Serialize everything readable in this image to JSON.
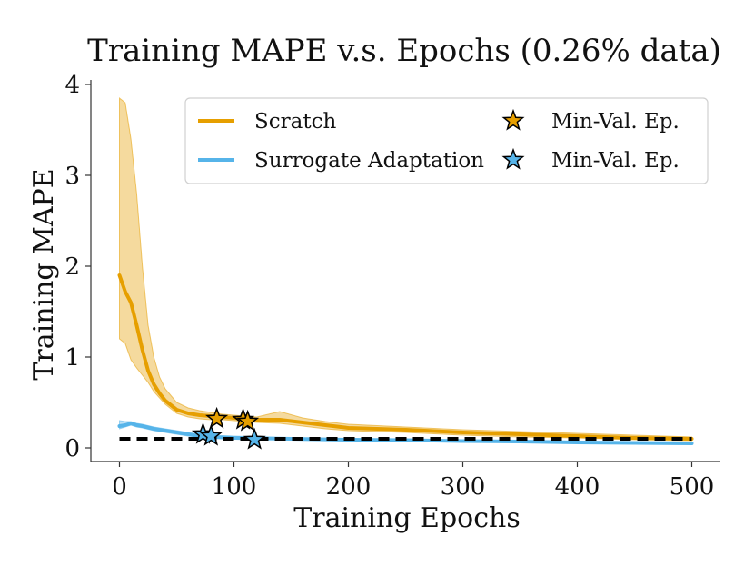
{
  "chart_data": {
    "type": "line",
    "title": "Training MAPE v.s. Epochs (0.26% data)",
    "xlabel": "Training Epochs",
    "ylabel": "Training MAPE",
    "xlim": [
      -25,
      525
    ],
    "ylim": [
      -0.15,
      4.05
    ],
    "xticks": [
      0,
      100,
      200,
      300,
      400,
      500
    ],
    "yticks": [
      0,
      1,
      2,
      3,
      4
    ],
    "xtick_labels": [
      "0",
      "100",
      "200",
      "300",
      "400",
      "500"
    ],
    "ytick_labels": [
      "0",
      "1",
      "2",
      "3",
      "4"
    ],
    "legend_position": "top-right",
    "reference_line": {
      "y": 0.1,
      "style": "dashed",
      "color": "#000000"
    },
    "series": [
      {
        "name": "Scratch",
        "color": "#E69F00",
        "x": [
          0,
          5,
          10,
          15,
          20,
          25,
          30,
          35,
          40,
          50,
          60,
          70,
          80,
          90,
          100,
          120,
          140,
          160,
          180,
          200,
          250,
          300,
          350,
          400,
          450,
          500
        ],
        "values": [
          1.9,
          1.72,
          1.6,
          1.35,
          1.08,
          0.85,
          0.7,
          0.6,
          0.52,
          0.42,
          0.38,
          0.36,
          0.35,
          0.34,
          0.33,
          0.31,
          0.31,
          0.28,
          0.25,
          0.22,
          0.2,
          0.17,
          0.15,
          0.13,
          0.11,
          0.1
        ],
        "upper": [
          3.85,
          3.8,
          3.4,
          2.8,
          2.0,
          1.35,
          1.0,
          0.78,
          0.65,
          0.5,
          0.44,
          0.41,
          0.39,
          0.37,
          0.36,
          0.34,
          0.4,
          0.33,
          0.29,
          0.26,
          0.23,
          0.2,
          0.18,
          0.16,
          0.14,
          0.12
        ],
        "lower": [
          1.2,
          1.15,
          0.97,
          0.88,
          0.8,
          0.72,
          0.62,
          0.55,
          0.48,
          0.38,
          0.34,
          0.32,
          0.31,
          0.31,
          0.3,
          0.28,
          0.27,
          0.24,
          0.21,
          0.19,
          0.17,
          0.14,
          0.12,
          0.11,
          0.09,
          0.08
        ],
        "min_val_epochs": [
          {
            "x": 85,
            "y": 0.32
          },
          {
            "x": 108,
            "y": 0.31
          },
          {
            "x": 112,
            "y": 0.29
          }
        ]
      },
      {
        "name": "Surrogate Adaptation",
        "color": "#56B4E9",
        "x": [
          0,
          5,
          10,
          15,
          20,
          30,
          40,
          50,
          60,
          70,
          80,
          100,
          150,
          200,
          250,
          300,
          350,
          400,
          450,
          500
        ],
        "values": [
          0.24,
          0.25,
          0.27,
          0.25,
          0.24,
          0.21,
          0.19,
          0.17,
          0.15,
          0.13,
          0.12,
          0.11,
          0.1,
          0.09,
          0.085,
          0.075,
          0.07,
          0.06,
          0.055,
          0.05
        ],
        "upper": [
          0.3,
          0.29,
          0.29,
          0.27,
          0.26,
          0.23,
          0.21,
          0.19,
          0.17,
          0.15,
          0.14,
          0.13,
          0.11,
          0.1,
          0.095,
          0.085,
          0.08,
          0.07,
          0.065,
          0.06
        ],
        "lower": [
          0.21,
          0.23,
          0.25,
          0.23,
          0.22,
          0.19,
          0.17,
          0.15,
          0.13,
          0.12,
          0.11,
          0.1,
          0.09,
          0.08,
          0.075,
          0.065,
          0.06,
          0.05,
          0.045,
          0.04
        ],
        "min_val_epochs": [
          {
            "x": 73,
            "y": 0.15
          },
          {
            "x": 80,
            "y": 0.13
          },
          {
            "x": 118,
            "y": 0.09
          }
        ]
      }
    ],
    "legend": {
      "entries": [
        {
          "label": "Scratch",
          "kind": "line",
          "color": "#E69F00"
        },
        {
          "label": "Min-Val. Ep.",
          "kind": "star",
          "color": "#E69F00"
        },
        {
          "label": "Surrogate Adaptation",
          "kind": "line",
          "color": "#56B4E9"
        },
        {
          "label": "Min-Val. Ep.",
          "kind": "star",
          "color": "#56B4E9"
        }
      ]
    }
  }
}
